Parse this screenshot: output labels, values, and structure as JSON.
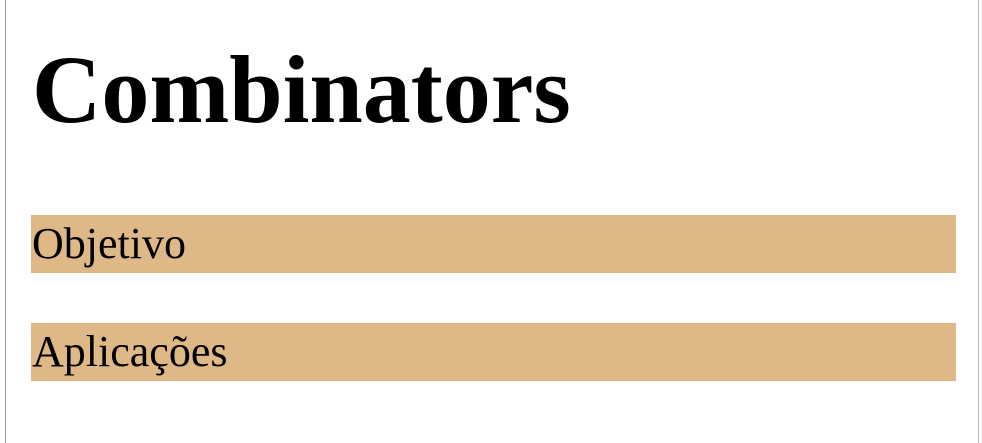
{
  "page": {
    "title": "Combinators",
    "sections": [
      {
        "label": "Objetivo"
      },
      {
        "label": "Aplicações"
      }
    ]
  },
  "colors": {
    "section_background": "#deb887",
    "page_background": "#ffffff",
    "text": "#000000"
  }
}
